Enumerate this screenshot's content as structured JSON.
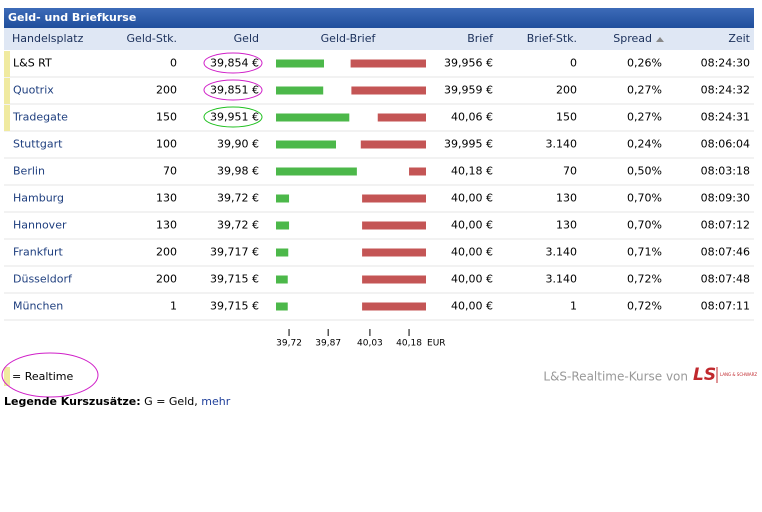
{
  "header": {
    "title": "Geld- und Briefkurse"
  },
  "table": {
    "columns": [
      "Handelsplatz",
      "Geld-Stk.",
      "Geld",
      "Geld-Brief",
      "Brief",
      "Brief-Stk.",
      "Spread",
      "Zeit"
    ],
    "rows": [
      {
        "market": "L&S RT",
        "geld_stk": "0",
        "geld": {
          "value": 39.854,
          "label": "39,854 €"
        },
        "brief": {
          "value": 39.956,
          "label": "39,956 €"
        },
        "brief_stk": "0",
        "spread": "0,26%",
        "zeit": "08:24:30",
        "realtime": true
      },
      {
        "market": "Quotrix",
        "geld_stk": "200",
        "geld": {
          "value": 39.851,
          "label": "39,851 €"
        },
        "brief": {
          "value": 39.959,
          "label": "39,959 €"
        },
        "brief_stk": "200",
        "spread": "0,27%",
        "zeit": "08:24:32",
        "realtime": true
      },
      {
        "market": "Tradegate",
        "geld_stk": "150",
        "geld": {
          "value": 39.951,
          "label": "39,951 €"
        },
        "brief": {
          "value": 40.06,
          "label": "40,06 €"
        },
        "brief_stk": "150",
        "spread": "0,27%",
        "zeit": "08:24:31",
        "realtime": true
      },
      {
        "market": "Stuttgart",
        "geld_stk": "100",
        "geld": {
          "value": 39.9,
          "label": "39,90 €"
        },
        "brief": {
          "value": 39.995,
          "label": "39,995 €"
        },
        "brief_stk": "3.140",
        "spread": "0,24%",
        "zeit": "08:06:04",
        "realtime": false
      },
      {
        "market": "Berlin",
        "geld_stk": "70",
        "geld": {
          "value": 39.98,
          "label": "39,98 €"
        },
        "brief": {
          "value": 40.18,
          "label": "40,18 €"
        },
        "brief_stk": "70",
        "spread": "0,50%",
        "zeit": "08:03:18",
        "realtime": false
      },
      {
        "market": "Hamburg",
        "geld_stk": "130",
        "geld": {
          "value": 39.72,
          "label": "39,72 €"
        },
        "brief": {
          "value": 40.0,
          "label": "40,00 €"
        },
        "brief_stk": "130",
        "spread": "0,70%",
        "zeit": "08:09:30",
        "realtime": false
      },
      {
        "market": "Hannover",
        "geld_stk": "130",
        "geld": {
          "value": 39.72,
          "label": "39,72 €"
        },
        "brief": {
          "value": 40.0,
          "label": "40,00 €"
        },
        "brief_stk": "130",
        "spread": "0,70%",
        "zeit": "08:07:12",
        "realtime": false
      },
      {
        "market": "Frankfurt",
        "geld_stk": "200",
        "geld": {
          "value": 39.717,
          "label": "39,717 €"
        },
        "brief": {
          "value": 40.0,
          "label": "40,00 €"
        },
        "brief_stk": "3.140",
        "spread": "0,71%",
        "zeit": "08:07:46",
        "realtime": false
      },
      {
        "market": "Düsseldorf",
        "geld_stk": "200",
        "geld": {
          "value": 39.715,
          "label": "39,715 €"
        },
        "brief": {
          "value": 40.0,
          "label": "40,00 €"
        },
        "brief_stk": "3.140",
        "spread": "0,72%",
        "zeit": "08:07:48",
        "realtime": false
      },
      {
        "market": "München",
        "geld_stk": "1",
        "geld": {
          "value": 39.715,
          "label": "39,715 €"
        },
        "brief": {
          "value": 40.0,
          "label": "40,00 €"
        },
        "brief_stk": "1",
        "spread": "0,72%",
        "zeit": "08:07:11",
        "realtime": false
      }
    ]
  },
  "scale": {
    "lim": [
      39.67,
      40.245
    ],
    "ticks": [
      {
        "value": 39.72,
        "label": "39,72"
      },
      {
        "value": 39.87,
        "label": "39,87"
      },
      {
        "value": 40.03,
        "label": "40,03"
      },
      {
        "value": 40.18,
        "label": "40,18"
      }
    ],
    "unit": "EUR"
  },
  "legend": {
    "realtime": "= Realtime",
    "source": "L&S-Realtime-Kurse von",
    "logo": "LS",
    "logo_caption": "LANG & SCHWARZ",
    "notes_label": "Legende Kurszusätze:",
    "notes_text": "G = Geld,",
    "link": "mehr"
  }
}
